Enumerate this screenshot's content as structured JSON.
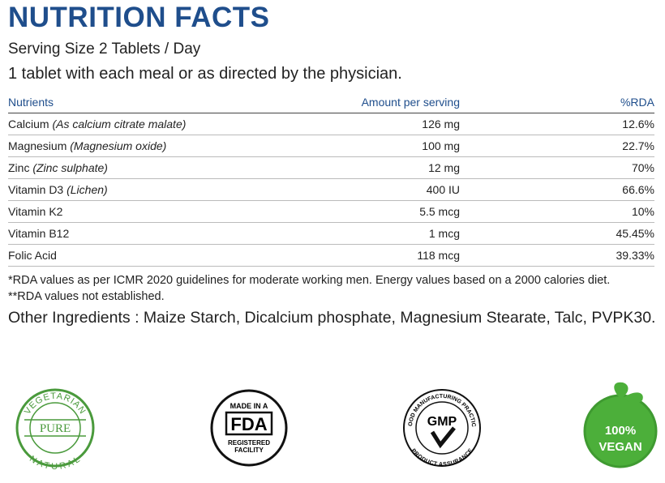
{
  "header": {
    "title": "NUTRITION FACTS",
    "serving": "Serving Size 2 Tablets / Day",
    "directions": "1 tablet with each meal or as directed by the physician."
  },
  "table": {
    "columns": [
      "Nutrients",
      "Amount per serving",
      "%RDA"
    ],
    "rows": [
      {
        "nutrient": "Calcium",
        "detail": "(As calcium citrate malate)",
        "amount": "126 mg",
        "rda": "12.6%"
      },
      {
        "nutrient": "Magnesium",
        "detail": "(Magnesium oxide)",
        "amount": "100 mg",
        "rda": "22.7%"
      },
      {
        "nutrient": "Zinc",
        "detail": "(Zinc sulphate)",
        "amount": "12 mg",
        "rda": "70%"
      },
      {
        "nutrient": "Vitamin D3",
        "detail": "(Lichen)",
        "amount": "400 IU",
        "rda": "66.6%"
      },
      {
        "nutrient": "Vitamin K2",
        "amount": "5.5 mcg",
        "rda": "10%"
      },
      {
        "nutrient": "Vitamin B12",
        "amount": "1 mcg",
        "rda": "45.45%"
      },
      {
        "nutrient": "Folic Acid",
        "amount": "118 mcg",
        "rda": "39.33%"
      }
    ]
  },
  "footnotes": [
    "*RDA values as per ICMR 2020 guidelines for moderate working men. Energy values based on a 2000 calories diet.",
    "**RDA values not established."
  ],
  "other_ingredients": "Other Ingredients : Maize Starch, Dicalcium phosphate, Magnesium Stearate, Talc, PVPK30.",
  "badges": {
    "vegetarian": {
      "top": "VEGETARIAN",
      "center": "PURE",
      "bottom": "NATURAL"
    },
    "fda": {
      "top": "MADE IN A",
      "center": "FDA",
      "bottom": [
        "REGISTERED",
        "FACILITY"
      ]
    },
    "gmp": {
      "top": "GOOD MANUFACTURING PRACTICE",
      "center": "GMP",
      "bottom": "PRODUCT ASSURANCE"
    },
    "vegan": {
      "top": "100%",
      "bottom": "VEGAN"
    }
  }
}
